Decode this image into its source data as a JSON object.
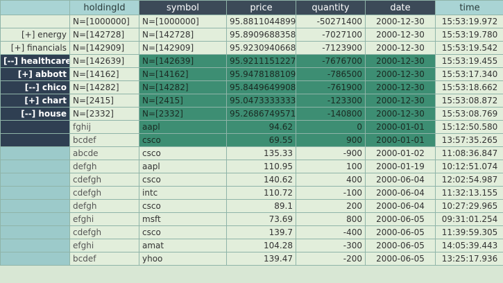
{
  "columns": [
    "holdingId",
    "symbol",
    "price",
    "quantity",
    "date",
    "time"
  ],
  "group_rows": [
    {
      "label": "",
      "holdingId": "N=[1000000]",
      "symbol": "N=[1000000]",
      "price": "95.881104489995",
      "quantity": "-50271400",
      "date": "2000-12-30",
      "time": "15:53:19.972",
      "style": "plain"
    },
    {
      "label": "[+] energy",
      "holdingId": "N=[142728]",
      "symbol": "N=[142728]",
      "price": "95.890968835828",
      "quantity": "-7027100",
      "date": "2000-12-30",
      "time": "15:53:19.780",
      "style": "plain"
    },
    {
      "label": "[+] financials",
      "holdingId": "N=[142909]",
      "symbol": "N=[142909]",
      "price": "95.923094066854",
      "quantity": "-7123900",
      "date": "2000-12-30",
      "time": "15:53:19.542",
      "style": "plain"
    },
    {
      "label": "[--] healthcare",
      "holdingId": "N=[142639]",
      "symbol": "N=[142639]",
      "price": "95.921115122793",
      "quantity": "-7676700",
      "date": "2000-12-30",
      "time": "15:53:19.455",
      "style": "open"
    },
    {
      "label": "[+] abbott",
      "holdingId": "N=[14162]",
      "symbol": "N=[14162]",
      "price": "95.947818810902",
      "quantity": "-786500",
      "date": "2000-12-30",
      "time": "15:53:17.340",
      "style": "open"
    },
    {
      "label": "[--] chico",
      "holdingId": "N=[14282]",
      "symbol": "N=[14282]",
      "price": "95.844964990898",
      "quantity": "-761900",
      "date": "2000-12-30",
      "time": "15:53:18.662",
      "style": "open"
    },
    {
      "label": "[+] chart",
      "holdingId": "N=[2415]",
      "symbol": "N=[2415]",
      "price": "95.047333333333",
      "quantity": "-123300",
      "date": "2000-12-30",
      "time": "15:53:08.872",
      "style": "open"
    },
    {
      "label": "[--] house",
      "holdingId": "N=[2332]",
      "symbol": "N=[2332]",
      "price": "95.268674957118",
      "quantity": "-140800",
      "date": "2000-12-30",
      "time": "15:53:08.769",
      "style": "open"
    }
  ],
  "leaf_rows": [
    {
      "holdingId": "fghij",
      "symbol": "aapl",
      "price": "94.62",
      "quantity": "0",
      "date": "2000-01-01",
      "time": "15:12:50.580",
      "style": "leafsel"
    },
    {
      "holdingId": "bcdef",
      "symbol": "csco",
      "price": "69.55",
      "quantity": "900",
      "date": "2000-01-01",
      "time": "13:57:35.265",
      "style": "leafsel"
    },
    {
      "holdingId": "abcde",
      "symbol": "csco",
      "price": "135.33",
      "quantity": "-900",
      "date": "2000-01-02",
      "time": "11:08:36.847",
      "style": "leaf"
    },
    {
      "holdingId": "defgh",
      "symbol": "aapl",
      "price": "110.95",
      "quantity": "100",
      "date": "2000-01-19",
      "time": "10:12:51.074",
      "style": "leaf"
    },
    {
      "holdingId": "cdefgh",
      "symbol": "csco",
      "price": "140.62",
      "quantity": "400",
      "date": "2000-06-04",
      "time": "12:02:54.987",
      "style": "leaf"
    },
    {
      "holdingId": "cdefgh",
      "symbol": "intc",
      "price": "110.72",
      "quantity": "-100",
      "date": "2000-06-04",
      "time": "11:32:13.155",
      "style": "leaf"
    },
    {
      "holdingId": "defgh",
      "symbol": "csco",
      "price": "89.1",
      "quantity": "200",
      "date": "2000-06-04",
      "time": "10:27:29.965",
      "style": "leaf"
    },
    {
      "holdingId": "efghi",
      "symbol": "msft",
      "price": "73.69",
      "quantity": "800",
      "date": "2000-06-05",
      "time": "09:31:01.254",
      "style": "leaf"
    },
    {
      "holdingId": "cdefgh",
      "symbol": "csco",
      "price": "139.7",
      "quantity": "-400",
      "date": "2000-06-05",
      "time": "11:39:59.305",
      "style": "leaf"
    },
    {
      "holdingId": "efghi",
      "symbol": "amat",
      "price": "104.28",
      "quantity": "-300",
      "date": "2000-06-05",
      "time": "14:05:39.443",
      "style": "leaf"
    },
    {
      "holdingId": "bcdef",
      "symbol": "yhoo",
      "price": "139.47",
      "quantity": "-200",
      "date": "2000-06-05",
      "time": "13:25:17.936",
      "style": "leaf"
    }
  ]
}
